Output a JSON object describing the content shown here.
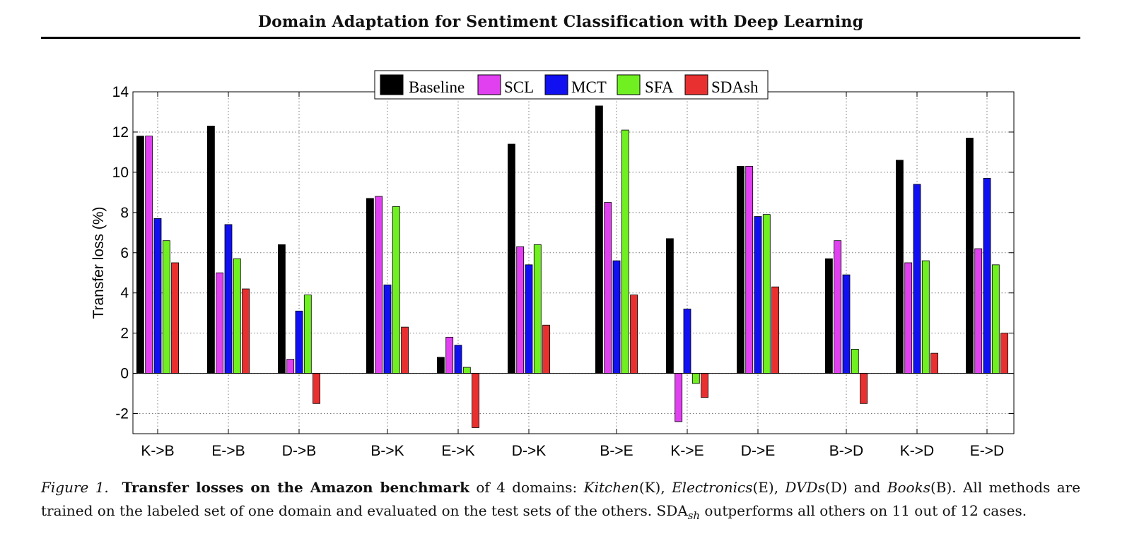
{
  "header": {
    "title": "Domain Adaptation for Sentiment Classification with Deep Learning"
  },
  "chart_data": {
    "type": "bar",
    "title": "",
    "xlabel": "",
    "ylabel": "Transfer loss (%)",
    "ylim": [
      -3,
      14
    ],
    "yticks": [
      -2,
      0,
      2,
      4,
      6,
      8,
      10,
      12,
      14
    ],
    "grid": true,
    "legend_position": "top-center",
    "categories": [
      "K->B",
      "E->B",
      "D->B",
      "B->K",
      "E->K",
      "D->K",
      "B->E",
      "K->E",
      "D->E",
      "B->D",
      "K->D",
      "E->D"
    ],
    "series": [
      {
        "name": "Baseline",
        "color": "#000000",
        "values": [
          11.8,
          12.3,
          6.4,
          8.7,
          0.8,
          11.4,
          13.3,
          6.7,
          10.3,
          5.7,
          10.6,
          11.7
        ]
      },
      {
        "name": "SCL",
        "color": "#e040f0",
        "values": [
          11.8,
          5.0,
          0.7,
          8.8,
          1.8,
          6.3,
          8.5,
          -2.4,
          10.3,
          6.6,
          5.5,
          6.2
        ]
      },
      {
        "name": "MCT",
        "color": "#1010f0",
        "values": [
          7.7,
          7.4,
          3.1,
          4.4,
          1.4,
          5.4,
          5.6,
          3.2,
          7.8,
          4.9,
          9.4,
          9.7
        ]
      },
      {
        "name": "SFA",
        "color": "#70f020",
        "values": [
          6.6,
          5.7,
          3.9,
          8.3,
          0.3,
          6.4,
          12.1,
          -0.5,
          7.9,
          1.2,
          5.6,
          5.4
        ]
      },
      {
        "name": "SDAsh",
        "color": "#e83030",
        "values": [
          5.5,
          4.2,
          -1.5,
          2.3,
          -2.7,
          2.4,
          3.9,
          -1.2,
          4.3,
          -1.5,
          1.0,
          2.0
        ]
      }
    ]
  },
  "caption": {
    "label": "Figure 1.",
    "bold": "Transfer losses on the Amazon benchmark",
    "t1": " of 4 domains: ",
    "k": "Kitchen",
    "k_code": "(K), ",
    "e": "Electronics",
    "e_code": "(E), ",
    "d": "DVDs",
    "d_code": "(D) and ",
    "b": "Books",
    "b_code": "(B). All methods are trained on the labeled set of one domain and evaluated on the test sets of the others. SDA",
    "sub": "sh",
    "t2": " outperforms all others on 11 out of 12 cases."
  }
}
